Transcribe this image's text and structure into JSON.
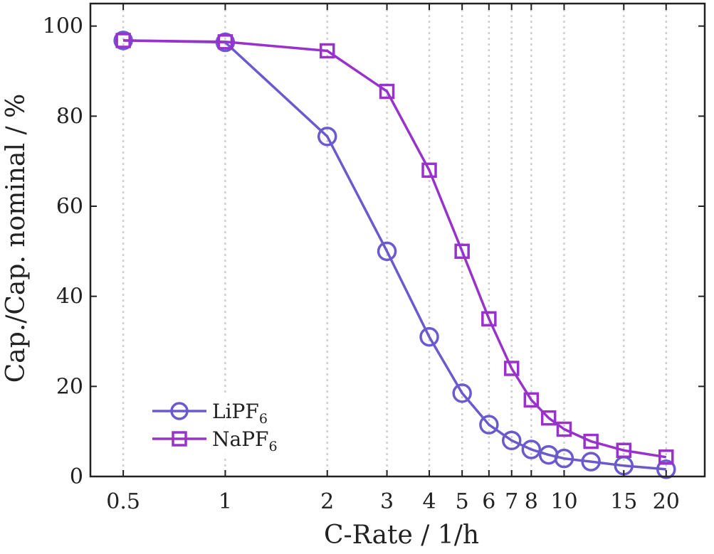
{
  "chart_data": {
    "type": "line",
    "title": "",
    "xlabel": "C-Rate / 1/h",
    "ylabel": "Cap./Cap. nominal / %",
    "xscale": "log",
    "xlim": [
      0.4,
      26
    ],
    "ylim": [
      0,
      105
    ],
    "xticks": [
      0.5,
      1,
      2,
      3,
      4,
      5,
      6,
      7,
      8,
      10,
      15,
      20
    ],
    "xtick_labels": [
      "0.5",
      "1",
      "2",
      "3",
      "4",
      "5",
      "6",
      "7",
      "8",
      "10",
      "15",
      "20"
    ],
    "yticks": [
      0,
      20,
      40,
      60,
      80,
      100
    ],
    "ytick_labels": [
      "0",
      "20",
      "40",
      "60",
      "80",
      "100"
    ],
    "grid": "vertical dotted gridlines at x tick positions",
    "legend_position": "bottom-left",
    "series": [
      {
        "name": "LiPF",
        "name_subscript": "6",
        "marker": "circle",
        "color": "#6a5acd",
        "x": [
          0.5,
          1,
          2,
          3,
          4,
          5,
          6,
          7,
          8,
          9,
          10,
          12,
          15,
          20
        ],
        "y": [
          96.8,
          96.4,
          75.5,
          50.0,
          31.0,
          18.5,
          11.5,
          8.0,
          6.0,
          4.8,
          4.0,
          3.3,
          2.4,
          1.6
        ]
      },
      {
        "name": "NaPF",
        "name_subscript": "6",
        "marker": "square",
        "color": "#9932cc",
        "x": [
          0.5,
          1,
          2,
          3,
          4,
          5,
          6,
          7,
          8,
          9,
          10,
          12,
          15,
          20
        ],
        "y": [
          96.8,
          96.5,
          94.5,
          85.5,
          68.0,
          50.0,
          35.0,
          24.0,
          17.0,
          13.0,
          10.5,
          7.8,
          5.8,
          4.3
        ]
      }
    ]
  }
}
